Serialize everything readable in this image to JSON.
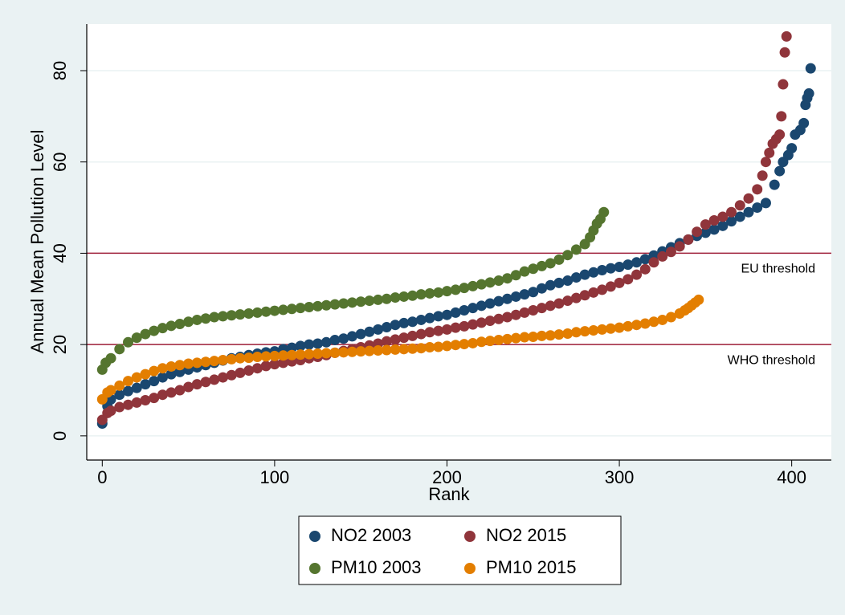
{
  "chart_data": {
    "type": "scatter",
    "xlabel": "Rank",
    "ylabel": "Annual Mean Pollution Level",
    "xlim": [
      -9,
      423
    ],
    "ylim": [
      -5.3,
      90.2
    ],
    "xticks": [
      0,
      100,
      200,
      300,
      400
    ],
    "yticks": [
      0,
      20,
      40,
      60,
      80
    ],
    "grid": true,
    "reference_lines": [
      {
        "value": 40,
        "label": "EU threshold",
        "color": "#a0203a"
      },
      {
        "value": 20,
        "label": "WHO threshold",
        "color": "#a0203a"
      }
    ],
    "legend": "bottom",
    "series": [
      {
        "name": "NO2 2003",
        "color": "#1a476f",
        "x": [
          0,
          3,
          5,
          10,
          15,
          20,
          25,
          30,
          35,
          40,
          45,
          50,
          55,
          60,
          65,
          70,
          75,
          80,
          85,
          90,
          95,
          100,
          105,
          110,
          115,
          120,
          125,
          130,
          135,
          140,
          145,
          150,
          155,
          160,
          165,
          170,
          175,
          180,
          185,
          190,
          195,
          200,
          205,
          210,
          215,
          220,
          225,
          230,
          235,
          240,
          245,
          250,
          255,
          260,
          265,
          270,
          275,
          280,
          285,
          290,
          295,
          300,
          305,
          310,
          315,
          320,
          325,
          330,
          335,
          340,
          345,
          350,
          355,
          360,
          365,
          370,
          375,
          380,
          385,
          390,
          393,
          395,
          398,
          400,
          402,
          405,
          407,
          408,
          409,
          410,
          411
        ],
        "values": [
          2.7,
          6.5,
          8,
          9,
          9.8,
          10.5,
          11.3,
          12,
          12.8,
          13.5,
          14,
          14.5,
          15,
          15.5,
          16,
          16.5,
          17,
          17.3,
          17.7,
          18,
          18.3,
          18.5,
          19,
          19.3,
          19.7,
          20,
          20.2,
          20.5,
          21,
          21.3,
          21.8,
          22.3,
          22.8,
          23.3,
          23.8,
          24.3,
          24.7,
          25,
          25.4,
          25.8,
          26.2,
          26.5,
          27,
          27.5,
          28,
          28.5,
          29,
          29.5,
          30,
          30.5,
          31,
          31.5,
          32.3,
          33,
          33.5,
          34,
          34.7,
          35.3,
          35.8,
          36.3,
          36.7,
          37,
          37.5,
          38,
          38.7,
          39.5,
          40.4,
          41.3,
          42.2,
          43,
          43.8,
          44.5,
          45.2,
          46,
          47,
          48,
          49,
          50,
          51,
          55,
          58,
          60,
          61.5,
          63,
          66,
          67,
          68.5,
          72.5,
          74,
          75,
          80.5
        ]
      },
      {
        "name": "NO2 2015",
        "color": "#90353b",
        "x": [
          0,
          3,
          5,
          10,
          15,
          20,
          25,
          30,
          35,
          40,
          45,
          50,
          55,
          60,
          65,
          70,
          75,
          80,
          85,
          90,
          95,
          100,
          105,
          110,
          115,
          120,
          125,
          130,
          135,
          140,
          145,
          150,
          155,
          160,
          165,
          170,
          175,
          180,
          185,
          190,
          195,
          200,
          205,
          210,
          215,
          220,
          225,
          230,
          235,
          240,
          245,
          250,
          255,
          260,
          265,
          270,
          275,
          280,
          285,
          290,
          295,
          300,
          305,
          310,
          315,
          320,
          325,
          330,
          335,
          340,
          345,
          350,
          355,
          360,
          365,
          370,
          375,
          380,
          383,
          385,
          387,
          389,
          391,
          393,
          394,
          395,
          396,
          397
        ],
        "values": [
          3.5,
          5,
          5.5,
          6.3,
          6.8,
          7.3,
          7.8,
          8.3,
          9,
          9.5,
          10,
          10.7,
          11.3,
          11.8,
          12.3,
          12.8,
          13.3,
          13.8,
          14.3,
          14.8,
          15.3,
          15.7,
          16,
          16.3,
          16.6,
          17,
          17.3,
          17.7,
          18.2,
          18.6,
          19,
          19.4,
          19.8,
          20.2,
          20.7,
          21.1,
          21.5,
          21.9,
          22.3,
          22.7,
          23,
          23.3,
          23.7,
          24,
          24.4,
          24.8,
          25.2,
          25.6,
          26,
          26.5,
          27,
          27.5,
          28,
          28.5,
          29,
          29.6,
          30.2,
          30.8,
          31.4,
          32,
          32.7,
          33.5,
          34.3,
          35.3,
          36.5,
          38,
          39.3,
          40.3,
          41.5,
          43,
          44.7,
          46.3,
          47.2,
          48,
          49,
          50.5,
          52,
          54,
          57,
          60,
          62,
          64,
          65,
          66,
          70,
          77,
          84,
          87.5
        ]
      },
      {
        "name": "PM10 2003",
        "color": "#55752f",
        "x": [
          0,
          2,
          5,
          10,
          15,
          20,
          25,
          30,
          35,
          40,
          45,
          50,
          55,
          60,
          65,
          70,
          75,
          80,
          85,
          90,
          95,
          100,
          105,
          110,
          115,
          120,
          125,
          130,
          135,
          140,
          145,
          150,
          155,
          160,
          165,
          170,
          175,
          180,
          185,
          190,
          195,
          200,
          205,
          210,
          215,
          220,
          225,
          230,
          235,
          240,
          245,
          250,
          255,
          260,
          265,
          270,
          275,
          280,
          283,
          285,
          287,
          289,
          291
        ],
        "values": [
          14.5,
          16,
          17,
          19,
          20.5,
          21.5,
          22.3,
          23,
          23.6,
          24.1,
          24.5,
          25,
          25.4,
          25.7,
          26,
          26.2,
          26.4,
          26.6,
          26.8,
          27,
          27.2,
          27.4,
          27.6,
          27.8,
          28,
          28.2,
          28.4,
          28.6,
          28.8,
          29,
          29.2,
          29.4,
          29.6,
          29.8,
          30,
          30.3,
          30.5,
          30.7,
          31,
          31.2,
          31.4,
          31.7,
          32,
          32.4,
          32.8,
          33.2,
          33.6,
          34,
          34.5,
          35.2,
          36,
          36.6,
          37.2,
          37.8,
          38.6,
          39.6,
          40.8,
          42,
          43.5,
          45,
          46.5,
          47.5,
          49
        ]
      },
      {
        "name": "PM10 2015",
        "color": "#e37e00",
        "x": [
          0,
          3,
          5,
          10,
          15,
          20,
          25,
          30,
          35,
          40,
          45,
          50,
          55,
          60,
          65,
          70,
          75,
          80,
          85,
          90,
          95,
          100,
          105,
          110,
          115,
          120,
          125,
          130,
          135,
          140,
          145,
          150,
          155,
          160,
          165,
          170,
          175,
          180,
          185,
          190,
          195,
          200,
          205,
          210,
          215,
          220,
          225,
          230,
          235,
          240,
          245,
          250,
          255,
          260,
          265,
          270,
          275,
          280,
          285,
          290,
          295,
          300,
          305,
          310,
          315,
          320,
          325,
          330,
          335,
          338,
          340,
          342,
          344,
          346
        ],
        "values": [
          8,
          9.5,
          10,
          11,
          12,
          12.8,
          13.5,
          14.2,
          14.8,
          15.2,
          15.5,
          15.8,
          16,
          16.2,
          16.4,
          16.6,
          16.8,
          17,
          17.1,
          17.3,
          17.4,
          17.5,
          17.6,
          17.7,
          17.8,
          17.9,
          18,
          18.1,
          18.2,
          18.3,
          18.4,
          18.5,
          18.6,
          18.7,
          18.8,
          18.9,
          19,
          19.1,
          19.2,
          19.4,
          19.5,
          19.7,
          19.9,
          20.1,
          20.3,
          20.6,
          20.8,
          21,
          21.2,
          21.4,
          21.6,
          21.7,
          21.9,
          22,
          22.2,
          22.4,
          22.7,
          22.9,
          23.1,
          23.3,
          23.5,
          23.7,
          24,
          24.3,
          24.6,
          25,
          25.4,
          26,
          26.8,
          27.5,
          28,
          28.6,
          29.2,
          29.8
        ]
      }
    ]
  }
}
